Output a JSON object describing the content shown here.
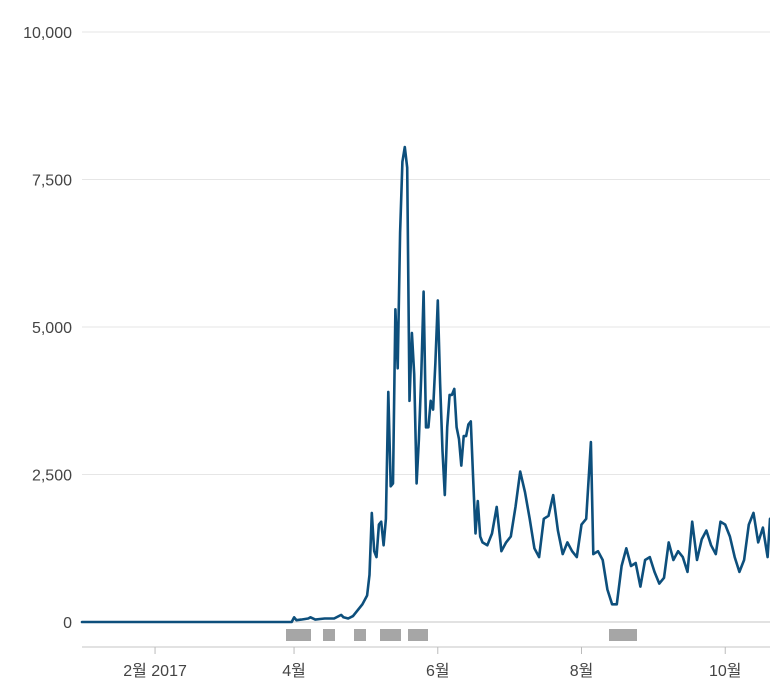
{
  "chart_data": {
    "type": "line",
    "title": "",
    "xlabel": "",
    "ylabel": "",
    "ylim": [
      0,
      10000
    ],
    "y_ticks": [
      {
        "value": 0,
        "label": "0"
      },
      {
        "value": 2500,
        "label": "2,500"
      },
      {
        "value": 5000,
        "label": "5,000"
      },
      {
        "value": 7500,
        "label": "7,500"
      },
      {
        "value": 10000,
        "label": "10,000"
      }
    ],
    "x_ticks": [
      {
        "date": "2017-02-01",
        "label": "2월 2017"
      },
      {
        "date": "2017-04-01",
        "label": "4월"
      },
      {
        "date": "2017-06-01",
        "label": "6월"
      },
      {
        "date": "2017-08-01",
        "label": "8월"
      },
      {
        "date": "2017-10-01",
        "label": "10월"
      }
    ],
    "xlim": [
      "2017-01-01",
      "2017-10-20"
    ],
    "grid": true,
    "line_color": "#0d4f7c",
    "series": [
      {
        "x": [
          "2017-01-01",
          "2017-03-31",
          "2017-04-01",
          "2017-04-02",
          "2017-04-04",
          "2017-04-07",
          "2017-04-08",
          "2017-04-10",
          "2017-04-12",
          "2017-04-14",
          "2017-04-18",
          "2017-04-21",
          "2017-04-22",
          "2017-04-24",
          "2017-04-26",
          "2017-04-28",
          "2017-04-30",
          "2017-05-02",
          "2017-05-03",
          "2017-05-04",
          "2017-05-05",
          "2017-05-06",
          "2017-05-07",
          "2017-05-08",
          "2017-05-09",
          "2017-05-10",
          "2017-05-11",
          "2017-05-12",
          "2017-05-13",
          "2017-05-14",
          "2017-05-15",
          "2017-05-16",
          "2017-05-17",
          "2017-05-18",
          "2017-05-19",
          "2017-05-20",
          "2017-05-21",
          "2017-05-22",
          "2017-05-23",
          "2017-05-24",
          "2017-05-25",
          "2017-05-26",
          "2017-05-27",
          "2017-05-28",
          "2017-05-29",
          "2017-05-30",
          "2017-05-31",
          "2017-06-01",
          "2017-06-02",
          "2017-06-03",
          "2017-06-04",
          "2017-06-05",
          "2017-06-06",
          "2017-06-07",
          "2017-06-08",
          "2017-06-09",
          "2017-06-10",
          "2017-06-11",
          "2017-06-12",
          "2017-06-13",
          "2017-06-14",
          "2017-06-15",
          "2017-06-16",
          "2017-06-17",
          "2017-06-18",
          "2017-06-19",
          "2017-06-20",
          "2017-06-22",
          "2017-06-24",
          "2017-06-26",
          "2017-06-28",
          "2017-06-30",
          "2017-07-02",
          "2017-07-04",
          "2017-07-06",
          "2017-07-08",
          "2017-07-10",
          "2017-07-12",
          "2017-07-14",
          "2017-07-16",
          "2017-07-18",
          "2017-07-20",
          "2017-07-22",
          "2017-07-24",
          "2017-07-26",
          "2017-07-28",
          "2017-07-30",
          "2017-08-01",
          "2017-08-03",
          "2017-08-05",
          "2017-08-06",
          "2017-08-08",
          "2017-08-10",
          "2017-08-12",
          "2017-08-14",
          "2017-08-16",
          "2017-08-18",
          "2017-08-20",
          "2017-08-22",
          "2017-08-24",
          "2017-08-26",
          "2017-08-28",
          "2017-08-30",
          "2017-09-01",
          "2017-09-03",
          "2017-09-05",
          "2017-09-07",
          "2017-09-09",
          "2017-09-11",
          "2017-09-13",
          "2017-09-15",
          "2017-09-17",
          "2017-09-19",
          "2017-09-21",
          "2017-09-23",
          "2017-09-25",
          "2017-09-27",
          "2017-09-29",
          "2017-10-01",
          "2017-10-03",
          "2017-10-05",
          "2017-10-07",
          "2017-10-09",
          "2017-10-11",
          "2017-10-13",
          "2017-10-15",
          "2017-10-17",
          "2017-10-19",
          "2017-10-20"
        ],
        "values": [
          0,
          0,
          80,
          30,
          40,
          60,
          80,
          40,
          50,
          60,
          60,
          120,
          80,
          60,
          100,
          200,
          300,
          450,
          800,
          1850,
          1200,
          1100,
          1650,
          1700,
          1300,
          1750,
          3900,
          2300,
          2350,
          5300,
          4300,
          6600,
          7800,
          8050,
          7700,
          3750,
          4900,
          4200,
          2350,
          3100,
          4200,
          5600,
          3300,
          3300,
          3750,
          3600,
          4400,
          5450,
          4050,
          2900,
          2150,
          3300,
          3850,
          3850,
          3950,
          3300,
          3100,
          2650,
          3150,
          3150,
          3350,
          3400,
          2450,
          1500,
          2050,
          1450,
          1350,
          1300,
          1500,
          1950,
          1200,
          1350,
          1450,
          1950,
          2550,
          2200,
          1750,
          1250,
          1100,
          1750,
          1800,
          2150,
          1550,
          1150,
          1350,
          1200,
          1100,
          1650,
          1750,
          3050,
          1150,
          1200,
          1050,
          550,
          300,
          300,
          950,
          1250,
          950,
          1000,
          600,
          1050,
          1100,
          850,
          650,
          750,
          1350,
          1050,
          1200,
          1100,
          850,
          1700,
          1050,
          1400,
          1550,
          1300,
          1150,
          1700,
          1650,
          1450,
          1100,
          850,
          1050,
          1650,
          1850,
          1350,
          1600,
          1100,
          1750
        ]
      }
    ]
  }
}
